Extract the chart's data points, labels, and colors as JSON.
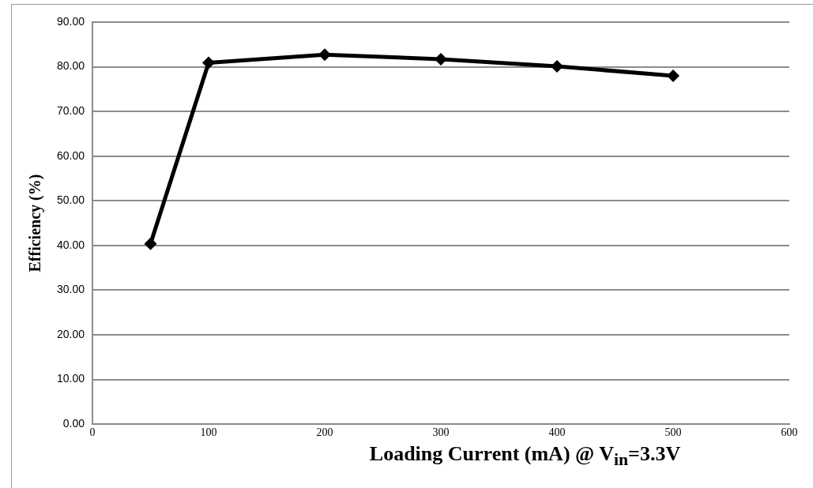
{
  "chart_data": {
    "type": "line",
    "xlabel": "Loading Current (mA) @ V$_{in}$=3.3V",
    "ylabel": "Efficiency (%)",
    "x": [
      50,
      100,
      200,
      300,
      400,
      500
    ],
    "series": [
      {
        "color": "#000000",
        "values": [
          40.4,
          80.9,
          82.7,
          81.7,
          80.1,
          78.0
        ]
      }
    ],
    "xlim": [
      0,
      600
    ],
    "xticks": [
      0,
      100,
      200,
      300,
      400,
      500,
      600
    ],
    "ylim": [
      0,
      90
    ],
    "yticks": [
      {
        "value": 0,
        "label": "0.00"
      },
      {
        "value": 10,
        "label": "10.00"
      },
      {
        "value": 20,
        "label": "20.00"
      },
      {
        "value": 30,
        "label": "30.00"
      },
      {
        "value": 40,
        "label": "40.00"
      },
      {
        "value": 50,
        "label": "50.00"
      },
      {
        "value": 60,
        "label": "60.00"
      },
      {
        "value": 70,
        "label": "70.00"
      },
      {
        "value": 80,
        "label": "80.00"
      },
      {
        "value": 90,
        "label": "90.00"
      }
    ],
    "grid": "y",
    "legend": false,
    "marker": "diamond",
    "line_style": "solid"
  }
}
